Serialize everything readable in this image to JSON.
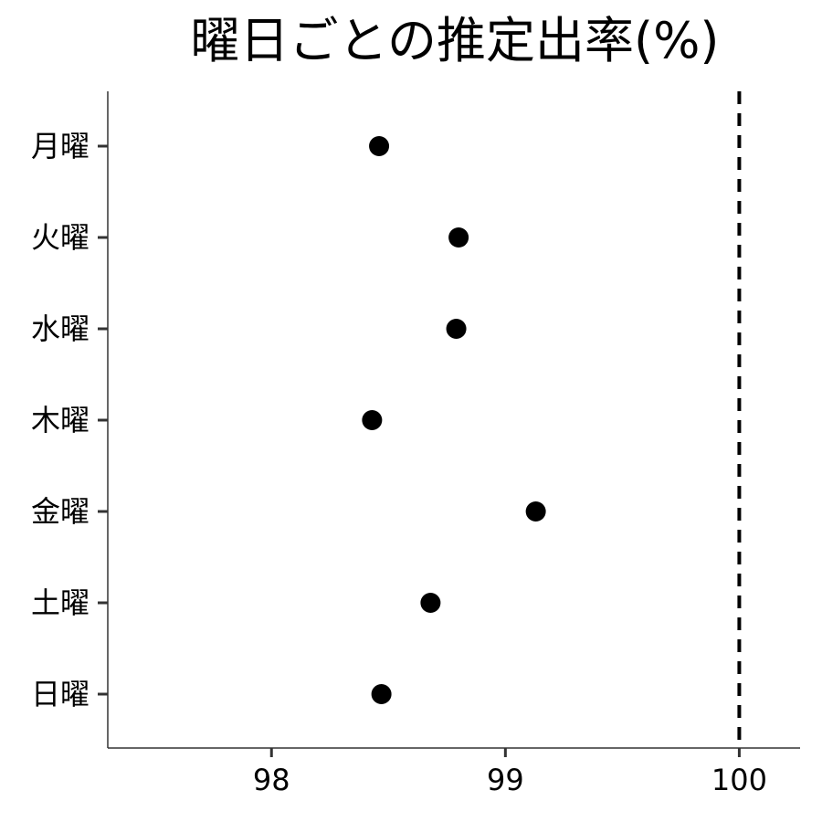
{
  "chart_data": {
    "type": "scatter",
    "title": "曜日ごとの推定出率(%)",
    "xlabel": "",
    "ylabel": "",
    "xlim": [
      97.3,
      100.26
    ],
    "x_ticks": [
      98,
      99,
      100
    ],
    "x_tick_labels": [
      "98",
      "99",
      "100"
    ],
    "categories": [
      "月曜",
      "火曜",
      "水曜",
      "木曜",
      "金曜",
      "土曜",
      "日曜"
    ],
    "values": [
      98.46,
      98.8,
      98.79,
      98.43,
      99.13,
      98.68,
      98.47
    ],
    "reference_line": {
      "x": 100,
      "style": "dashed"
    },
    "grid": false,
    "legend": "none",
    "colors": {
      "point": "#000000",
      "axis": "#333333",
      "reference": "#000000"
    }
  }
}
